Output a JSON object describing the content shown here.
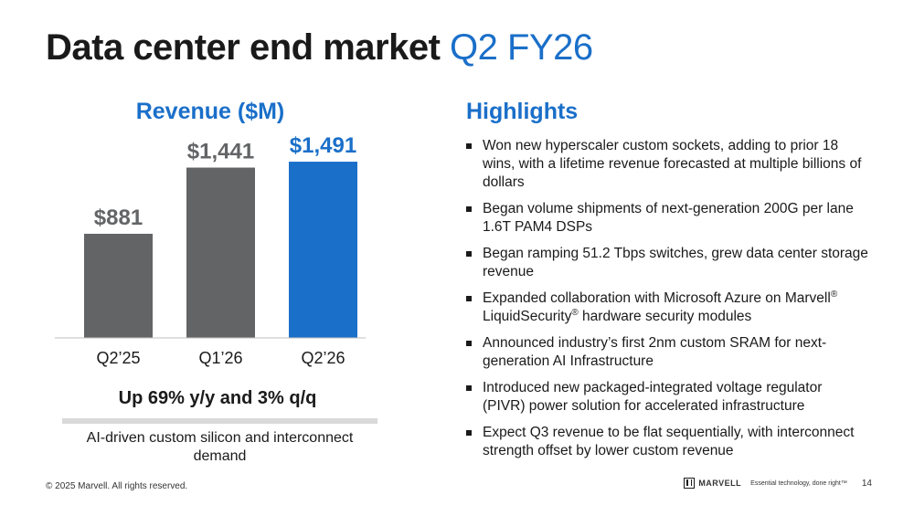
{
  "slide": {
    "title_main": "Data center end market",
    "title_accent": "Q2 FY26",
    "highlights_title": "Highlights",
    "bullets": [
      {
        "parts": [
          {
            "t": "Won new hyperscaler custom sockets, adding to prior 18 wins, with a lifetime revenue forecasted at multiple billions of dollars"
          }
        ]
      },
      {
        "parts": [
          {
            "t": "Began volume shipments of next-generation 200G per lane 1.6T PAM4 DSPs"
          }
        ]
      },
      {
        "parts": [
          {
            "t": "Began ramping 51.2 Tbps switches, grew data center storage revenue"
          }
        ]
      },
      {
        "parts": [
          {
            "t": "Expanded collaboration with Microsoft Azure on Marvell"
          },
          {
            "t": "®",
            "sup": true
          },
          {
            "t": " LiquidSecurity"
          },
          {
            "t": "®",
            "sup": true
          },
          {
            "t": " hardware security modules"
          }
        ]
      },
      {
        "parts": [
          {
            "t": "Announced industry’s first 2nm custom SRAM for next-generation AI Infrastructure"
          }
        ]
      },
      {
        "parts": [
          {
            "t": "Introduced new packaged-integrated voltage regulator (PIVR) power solution for accelerated infrastructure"
          }
        ]
      },
      {
        "parts": [
          {
            "t": "Expect Q3 revenue to be flat sequentially, with interconnect strength offset by lower custom revenue"
          }
        ]
      }
    ],
    "summary": "Up 69% y/y and 3% q/q",
    "subnote": "AI-driven custom silicon and interconnect demand"
  },
  "footer": {
    "copyright": "© 2025 Marvell. All rights reserved.",
    "logo_text": "MARVELL",
    "tagline": "Essential technology, done right™",
    "page_number": "14"
  },
  "chart_data": {
    "type": "bar",
    "title": "Revenue ($M)",
    "categories": [
      "Q2’25",
      "Q1’26",
      "Q2’26"
    ],
    "values": [
      881,
      1441,
      1491
    ],
    "data_labels": [
      "$881",
      "$1,441",
      "$1,491"
    ],
    "bar_colors": [
      "#636466",
      "#636466",
      "#1a6fc9"
    ],
    "label_colors": [
      "#636466",
      "#636466",
      "#1a6fc9"
    ],
    "ylim": [
      0,
      1700
    ],
    "grid": false,
    "legend": "none"
  }
}
